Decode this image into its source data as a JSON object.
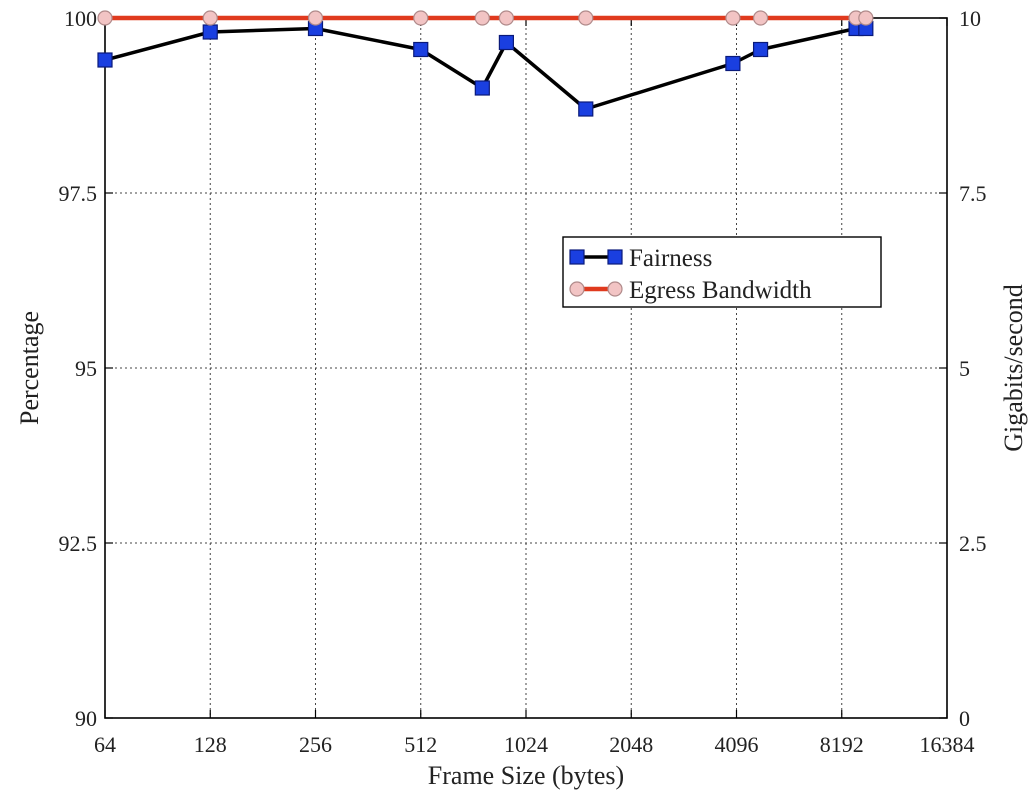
{
  "chart_data": {
    "type": "line",
    "title": "",
    "xlabel": "Frame Size (bytes)",
    "ylabel_left": "Percentage",
    "ylabel_right": "Gigabits/second",
    "x_scale": "log2",
    "xlim": [
      64,
      16384
    ],
    "x_ticks": [
      "64",
      "128",
      "256",
      "512",
      "1024",
      "2048",
      "4096",
      "8192",
      "16384"
    ],
    "y_left_lim": [
      90,
      100
    ],
    "y_left_ticks": [
      "90",
      "92.5",
      "95",
      "97.5",
      "100"
    ],
    "y_right_lim": [
      0,
      10
    ],
    "y_right_ticks": [
      "0",
      "2.5",
      "5",
      "7.5",
      "10"
    ],
    "grid": true,
    "legend_position": "center-right",
    "series": [
      {
        "name": "Fairness",
        "axis": "left",
        "color": "#000000",
        "marker": "square",
        "marker_color": "#1a3fe0",
        "x": [
          64,
          128,
          256,
          512,
          768,
          900,
          1518,
          4000,
          4800,
          9000,
          9600
        ],
        "y": [
          99.4,
          99.8,
          99.85,
          99.55,
          99.0,
          99.65,
          98.7,
          99.35,
          99.55,
          99.85,
          99.85
        ]
      },
      {
        "name": "Egress Bandwidth",
        "axis": "right",
        "color": "#e03a1e",
        "marker": "circle",
        "marker_color": "#f2c4c4",
        "x": [
          64,
          128,
          256,
          512,
          768,
          900,
          1518,
          4000,
          4800,
          9000,
          9600
        ],
        "y": [
          10,
          10,
          10,
          10,
          10,
          10,
          10,
          10,
          10,
          10,
          10
        ]
      }
    ]
  }
}
